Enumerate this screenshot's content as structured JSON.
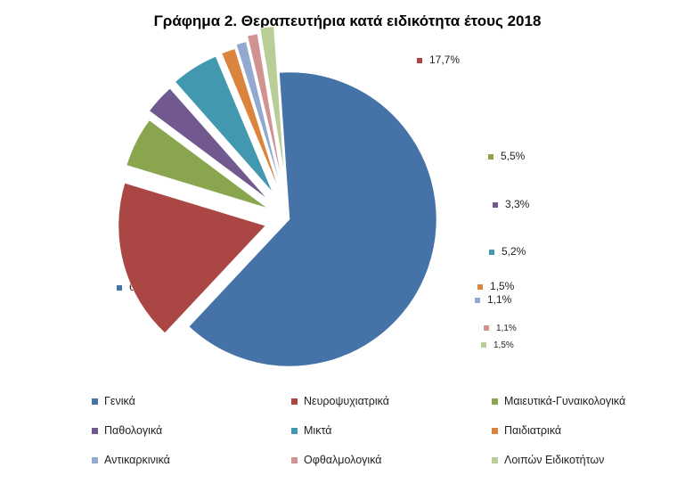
{
  "chart_data": {
    "type": "pie",
    "title": "Γράφημα 2. Θεραπευτήρια κατά ειδικότητα έτους 2018",
    "legend": "bottom",
    "slices": [
      {
        "name": "Γενικά",
        "value": 63.1,
        "label": "63,1%",
        "color": "#4572A7"
      },
      {
        "name": "Νευροψυχιατρικά",
        "value": 17.7,
        "label": "17,7%",
        "color": "#AA4643"
      },
      {
        "name": "Μαιευτικά-Γυναικολογικά",
        "value": 5.5,
        "label": "5,5%",
        "color": "#89A54E"
      },
      {
        "name": "Παθολογικά",
        "value": 3.3,
        "label": "3,3%",
        "color": "#71588F"
      },
      {
        "name": "Μικτά",
        "value": 5.2,
        "label": "5,2%",
        "color": "#4198AF"
      },
      {
        "name": "Παιδιατρικά",
        "value": 1.5,
        "label": "1,5%",
        "color": "#DB843D"
      },
      {
        "name": "Αντικαρκινικά",
        "value": 1.1,
        "label": "1,1%",
        "color": "#93A9CF"
      },
      {
        "name": "Οφθαλμολογικά",
        "value": 1.1,
        "label": "1,1%",
        "color": "#D19392"
      },
      {
        "name": "Λοιπών Ειδικοτήτων",
        "value": 1.5,
        "label": "1,5%",
        "color": "#B9CD96"
      }
    ]
  }
}
